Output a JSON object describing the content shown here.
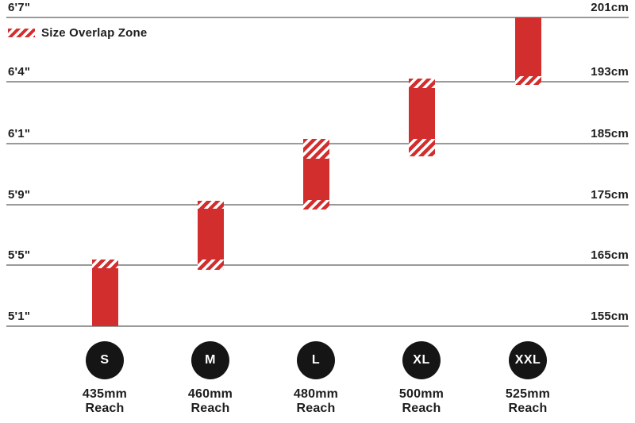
{
  "colors": {
    "bar_red": "#d32e2e",
    "gridline": "#9a9a9a",
    "text": "#1d1d1d",
    "circle_black": "#151515",
    "circle_letter": "#ffffff",
    "background": "#ffffff"
  },
  "chart_data": {
    "type": "bar",
    "subtype": "vertical-range-bars",
    "title": "",
    "grid": true,
    "legend": [
      {
        "label": "Size Overlap Zone",
        "swatch": "red-diagonal-hatch",
        "position": "top-left"
      }
    ],
    "y_axis_left": {
      "unit": "feet-inches",
      "ticks": [
        "6'7\"",
        "6'4\"",
        "6'1\"",
        "5'9\"",
        "5'5\"",
        "5'1\""
      ]
    },
    "y_axis_right": {
      "unit": "cm",
      "ticks": [
        "201cm",
        "193cm",
        "185cm",
        "175cm",
        "165cm",
        "155cm"
      ]
    },
    "y_ticks": [
      {
        "cm": 201,
        "left_label": "6'7\"",
        "right_label": "201cm"
      },
      {
        "cm": 193,
        "left_label": "6'4\"",
        "right_label": "193cm"
      },
      {
        "cm": 185,
        "left_label": "6'1\"",
        "right_label": "185cm"
      },
      {
        "cm": 175,
        "left_label": "5'9\"",
        "right_label": "175cm"
      },
      {
        "cm": 165,
        "left_label": "5'5\"",
        "right_label": "165cm"
      },
      {
        "cm": 155,
        "left_label": "5'1\"",
        "right_label": "155cm"
      }
    ],
    "sizes": [
      {
        "label": "S",
        "reach_value": "435mm",
        "reach_word": "Reach",
        "height_range_cm": [
          155,
          165
        ],
        "height_range_ft": [
          "5'1\"",
          "5'5\""
        ],
        "segments": [
          {
            "style": "hatch",
            "from_cm": 164.5,
            "to_cm": 165.9
          },
          {
            "style": "solid",
            "from_cm": 155.0,
            "to_cm": 164.5
          }
        ]
      },
      {
        "label": "M",
        "reach_value": "460mm",
        "reach_word": "Reach",
        "height_range_cm": [
          165,
          175
        ],
        "height_range_ft": [
          "5'5\"",
          "5'9\""
        ],
        "segments": [
          {
            "style": "hatch",
            "from_cm": 174.3,
            "to_cm": 175.7
          },
          {
            "style": "solid",
            "from_cm": 165.9,
            "to_cm": 174.3
          },
          {
            "style": "hatch",
            "from_cm": 164.2,
            "to_cm": 165.9
          }
        ]
      },
      {
        "label": "L",
        "reach_value": "480mm",
        "reach_word": "Reach",
        "height_range_cm": [
          175,
          185
        ],
        "height_range_ft": [
          "5'9\"",
          "6'1\""
        ],
        "segments": [
          {
            "style": "hatch",
            "from_cm": 182.5,
            "to_cm": 185.6
          },
          {
            "style": "solid",
            "from_cm": 175.8,
            "to_cm": 182.5
          },
          {
            "style": "hatch",
            "from_cm": 174.2,
            "to_cm": 175.8
          }
        ]
      },
      {
        "label": "XL",
        "reach_value": "500mm",
        "reach_word": "Reach",
        "height_range_cm": [
          185,
          193
        ],
        "height_range_ft": [
          "6'1\"",
          "6'4\""
        ],
        "segments": [
          {
            "style": "hatch",
            "from_cm": 192.2,
            "to_cm": 193.4
          },
          {
            "style": "solid",
            "from_cm": 185.6,
            "to_cm": 192.2
          },
          {
            "style": "hatch",
            "from_cm": 182.9,
            "to_cm": 185.6
          }
        ]
      },
      {
        "label": "XXL",
        "reach_value": "525mm",
        "reach_word": "Reach",
        "height_range_cm": [
          193,
          201
        ],
        "height_range_ft": [
          "6'4\"",
          "6'7\""
        ],
        "segments": [
          {
            "style": "solid",
            "from_cm": 193.7,
            "to_cm": 201.0
          },
          {
            "style": "hatch",
            "from_cm": 192.6,
            "to_cm": 193.7
          }
        ]
      }
    ]
  }
}
